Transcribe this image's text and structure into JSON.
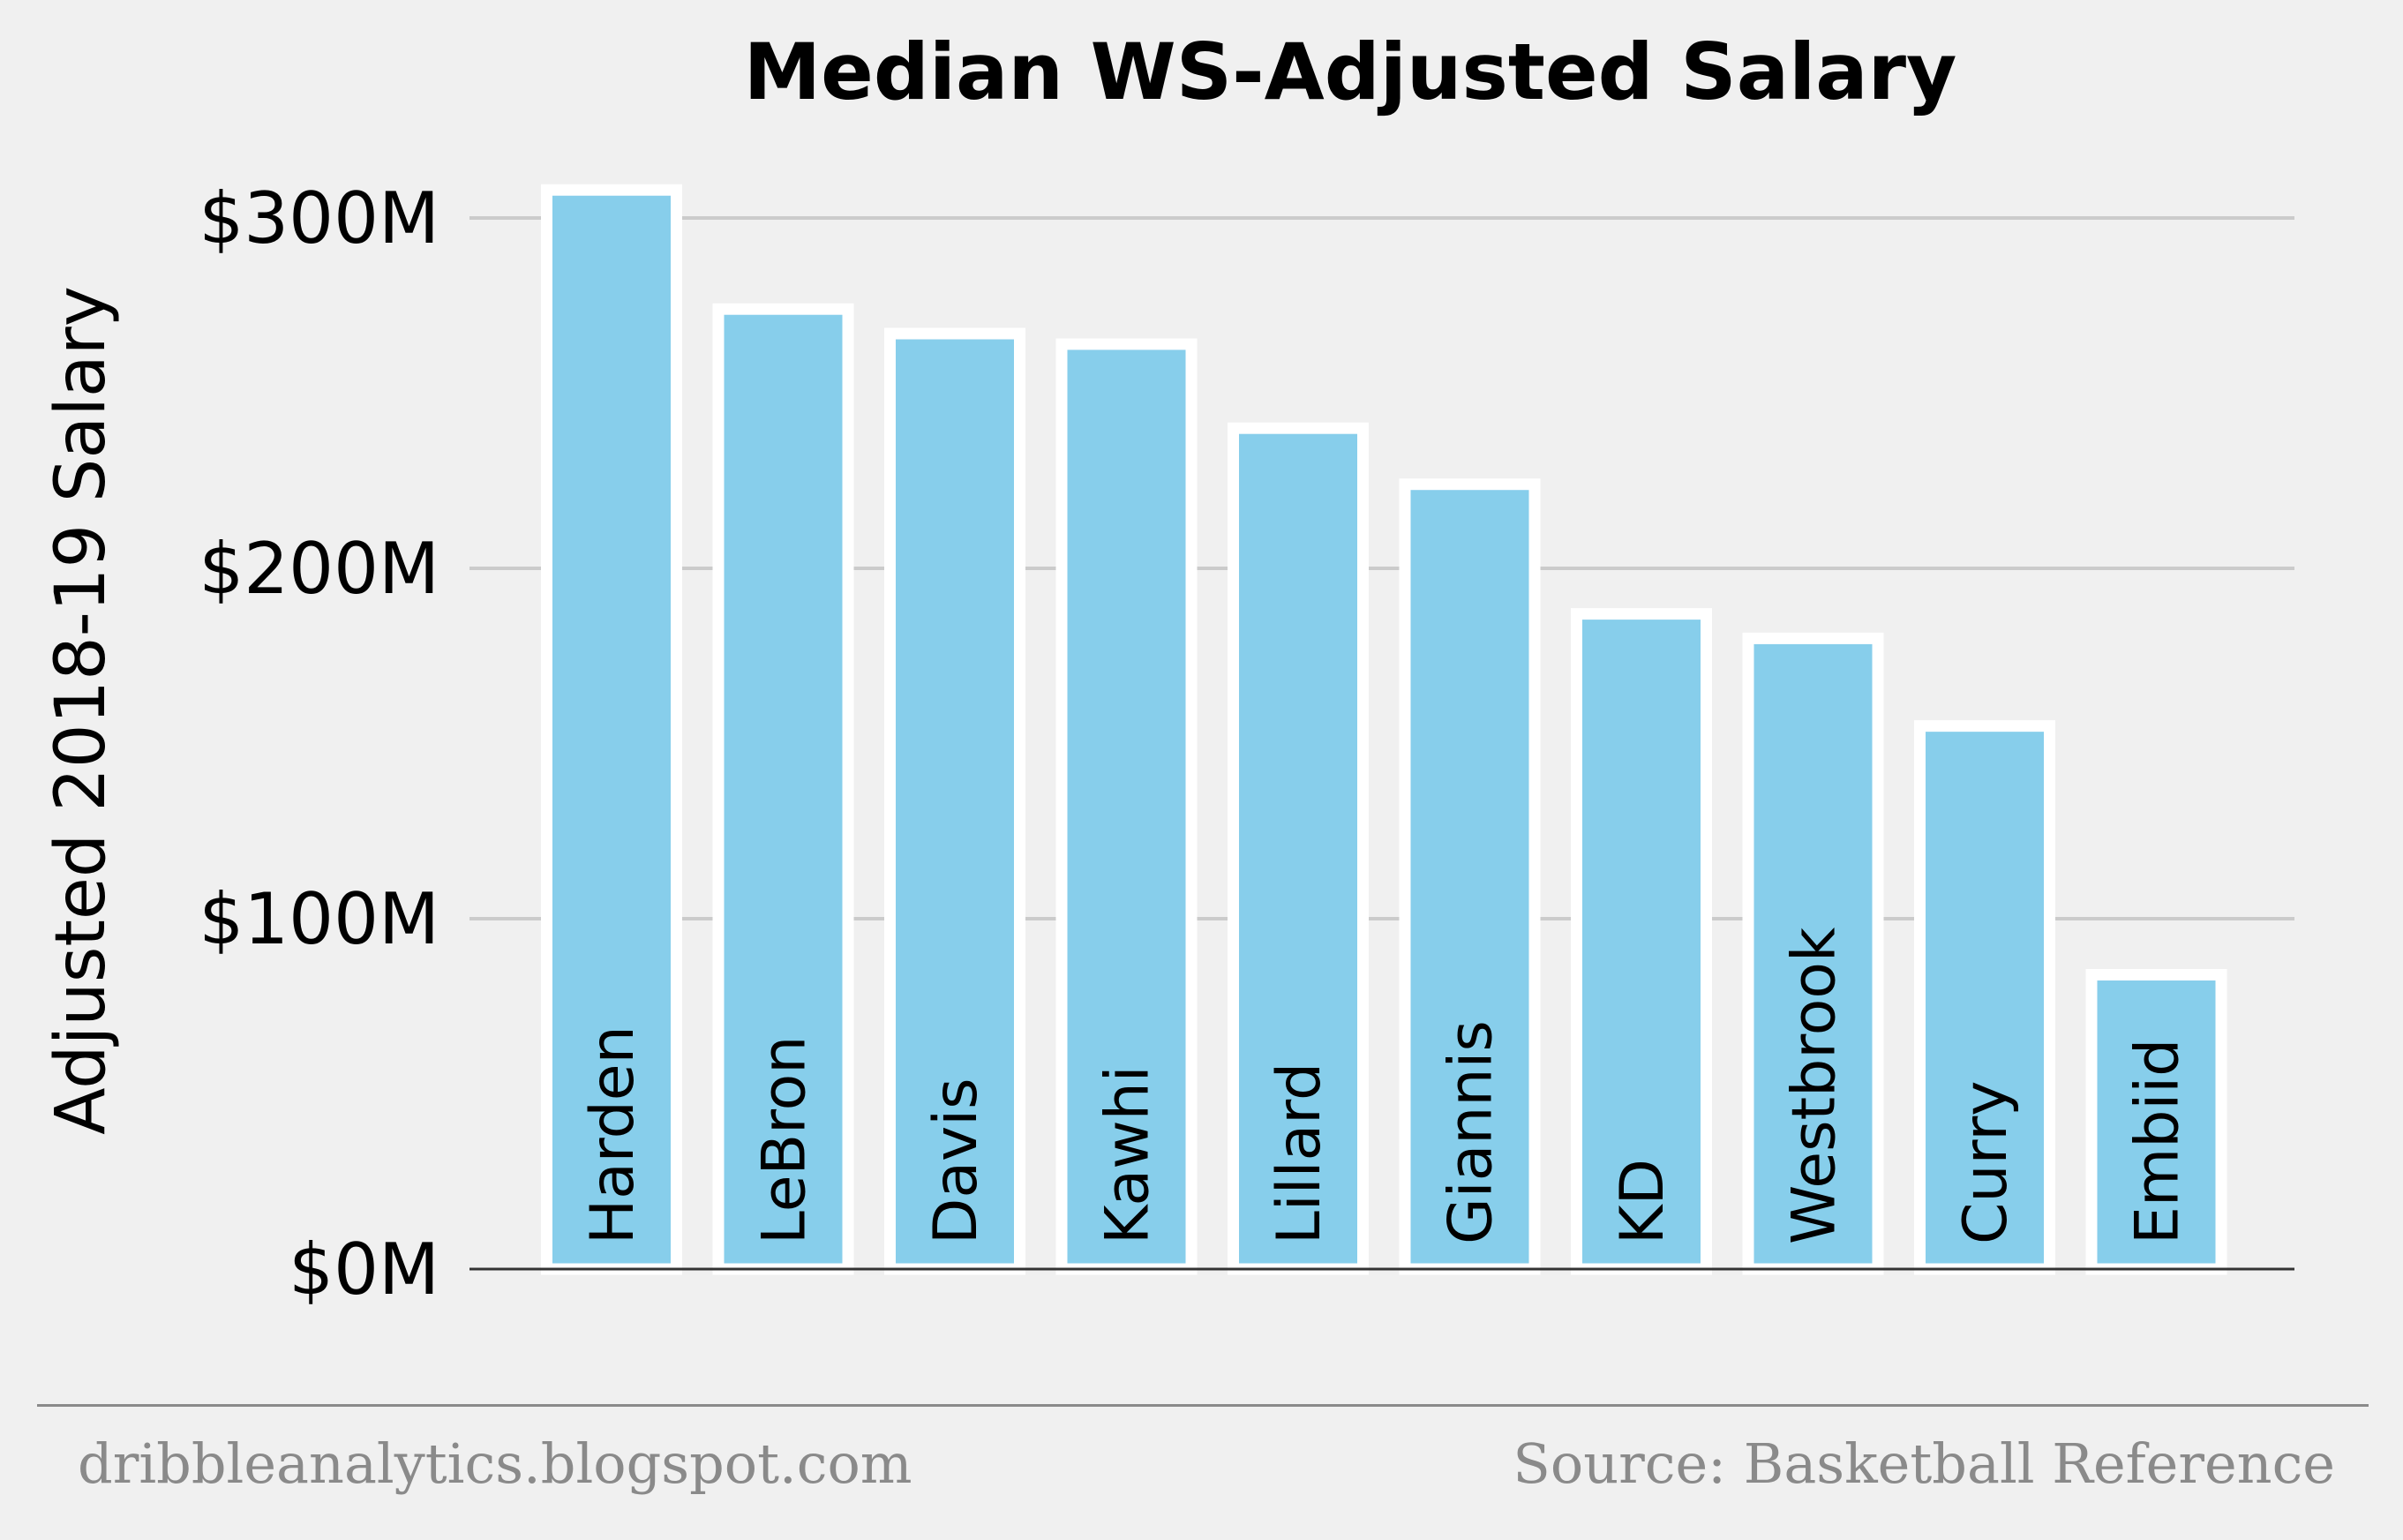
{
  "chart_data": {
    "type": "bar",
    "title": "Median WS-Adjusted Salary",
    "ylabel": "Adjusted 2018-19 Salary",
    "xlabel": "",
    "categories": [
      "Harden",
      "LeBron",
      "Davis",
      "Kawhi",
      "Lillard",
      "Giannis",
      "KD",
      "Westbrook",
      "Curry",
      "Embiid"
    ],
    "values": [
      308,
      274,
      267,
      264,
      240,
      224,
      187,
      180,
      155,
      84
    ],
    "unit": "$M",
    "ylim": [
      0,
      320
    ],
    "yticks": [
      0,
      100,
      200,
      300
    ],
    "ytick_labels": [
      "$0M",
      "$100M",
      "$200M",
      "$300M"
    ],
    "grid": "horizontal",
    "category_labels_inside_bars": true,
    "colors": {
      "bar": "#87ceeb",
      "bar_edge": "#ffffff",
      "grid": "#cbcbcb",
      "axis": "#333333",
      "text": "#000000",
      "background": "#f0f0f0"
    }
  },
  "footer": {
    "left": "dribbleanalytics.blogspot.com",
    "right": "Source: Basketball Reference",
    "color": "#8a8a8a"
  }
}
